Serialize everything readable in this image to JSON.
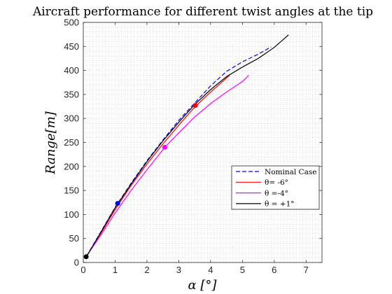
{
  "chart_data": {
    "type": "line",
    "title": "Aircraft performance for different twist angles at the tip",
    "xlabel": "α [°]",
    "ylabel": "Range[m]",
    "xlim": [
      0,
      7.5
    ],
    "ylim": [
      0,
      500
    ],
    "xticks": [
      0,
      1,
      2,
      3,
      4,
      5,
      6,
      7
    ],
    "yticks": [
      0,
      50,
      100,
      150,
      200,
      250,
      300,
      350,
      400,
      450,
      500
    ],
    "grid": "minor-dotted",
    "legend_position": "lower-right",
    "series": [
      {
        "name": "Nominal Case",
        "color": "#0000ff",
        "dash": true,
        "x": [
          0.1,
          0.5,
          1.0,
          1.5,
          2.0,
          2.5,
          3.0,
          3.5,
          4.0,
          4.5,
          5.0,
          5.5,
          5.9
        ],
        "y": [
          13,
          58,
          115,
          165,
          212,
          255,
          296,
          332,
          368,
          398,
          418,
          434,
          449
        ],
        "marker": null
      },
      {
        "name": "θ= -6°",
        "color": "#ff0000",
        "dash": false,
        "x": [
          0.1,
          0.5,
          1.0,
          1.5,
          2.0,
          2.5,
          3.0,
          3.52,
          4.0,
          4.6
        ],
        "y": [
          13,
          55,
          110,
          160,
          205,
          247,
          286,
          325,
          355,
          390
        ],
        "marker": {
          "x": 3.52,
          "y": 327
        }
      },
      {
        "name": "θ =-4°",
        "color": "#ff00ff",
        "dash": false,
        "x": [
          0.1,
          0.5,
          1.0,
          1.5,
          2.0,
          2.56,
          3.0,
          3.5,
          4.0,
          4.5,
          5.0,
          5.2
        ],
        "y": [
          13,
          52,
          103,
          150,
          193,
          240,
          270,
          303,
          331,
          355,
          377,
          390
        ],
        "marker": {
          "x": 2.56,
          "y": 240
        }
      },
      {
        "name": "θ = +1°",
        "color": "#000000",
        "dash": false,
        "x": [
          0.1,
          0.5,
          1.0,
          1.5,
          2.0,
          2.5,
          3.0,
          3.5,
          4.0,
          4.5,
          5.0,
          5.5,
          6.0,
          6.45
        ],
        "y": [
          12,
          57,
          114,
          163,
          210,
          253,
          292,
          329,
          360,
          387,
          407,
          425,
          448,
          474
        ],
        "marker": {
          "x": 0.09,
          "y": 12
        }
      }
    ],
    "extra_markers": [
      {
        "x": 1.08,
        "y": 123,
        "color": "#0000ff"
      }
    ]
  }
}
